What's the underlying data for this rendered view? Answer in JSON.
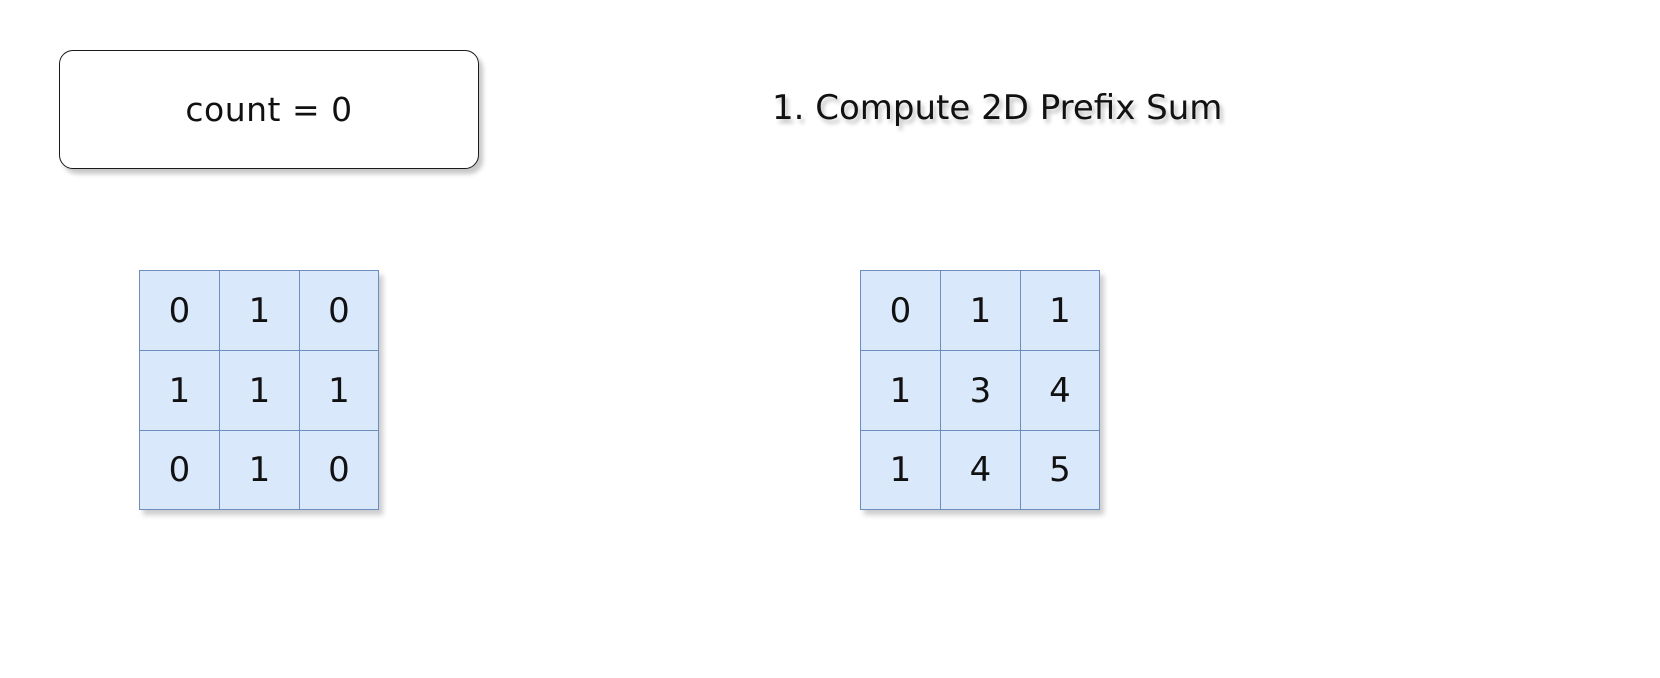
{
  "counter": {
    "text": "count = 0"
  },
  "step": {
    "title": "1. Compute 2D Prefix Sum"
  },
  "input_matrix": {
    "rows": [
      [
        "0",
        "1",
        "0"
      ],
      [
        "1",
        "1",
        "1"
      ],
      [
        "0",
        "1",
        "0"
      ]
    ]
  },
  "prefix_matrix": {
    "rows": [
      [
        "0",
        "1",
        "1"
      ],
      [
        "1",
        "3",
        "4"
      ],
      [
        "1",
        "4",
        "5"
      ]
    ]
  },
  "colors": {
    "cell_fill": "#dae8fc",
    "cell_border": "#6c8ebf"
  }
}
